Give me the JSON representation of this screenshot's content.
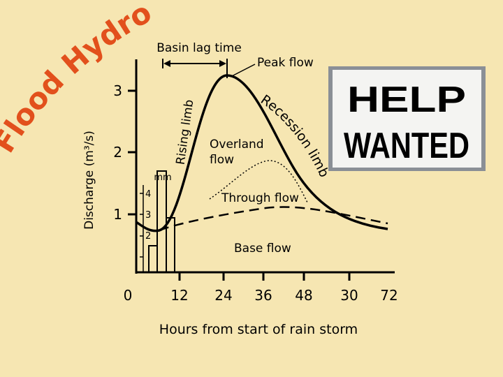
{
  "title": "Flood Hydrograph",
  "axes": {
    "y_label": "Discharge (m³/s)",
    "x_label": "Hours from start of rain storm",
    "x_ticks": [
      "0",
      "12",
      "24",
      "36",
      "48",
      "30",
      "72"
    ],
    "y_ticks": [
      "1",
      "2",
      "3"
    ],
    "rain_ticks": [
      "2",
      "3",
      "4"
    ],
    "rain_unit": "mm"
  },
  "labels": {
    "basin_lag": "Basin lag time",
    "peak": "Peak flow",
    "rising": "Rising limb",
    "recession": "Recession limb",
    "overland": [
      "Overland",
      "flow"
    ],
    "through": "Through flow",
    "base": "Base flow"
  },
  "image": {
    "text_lines": [
      "HELP",
      "WANTED"
    ]
  }
}
